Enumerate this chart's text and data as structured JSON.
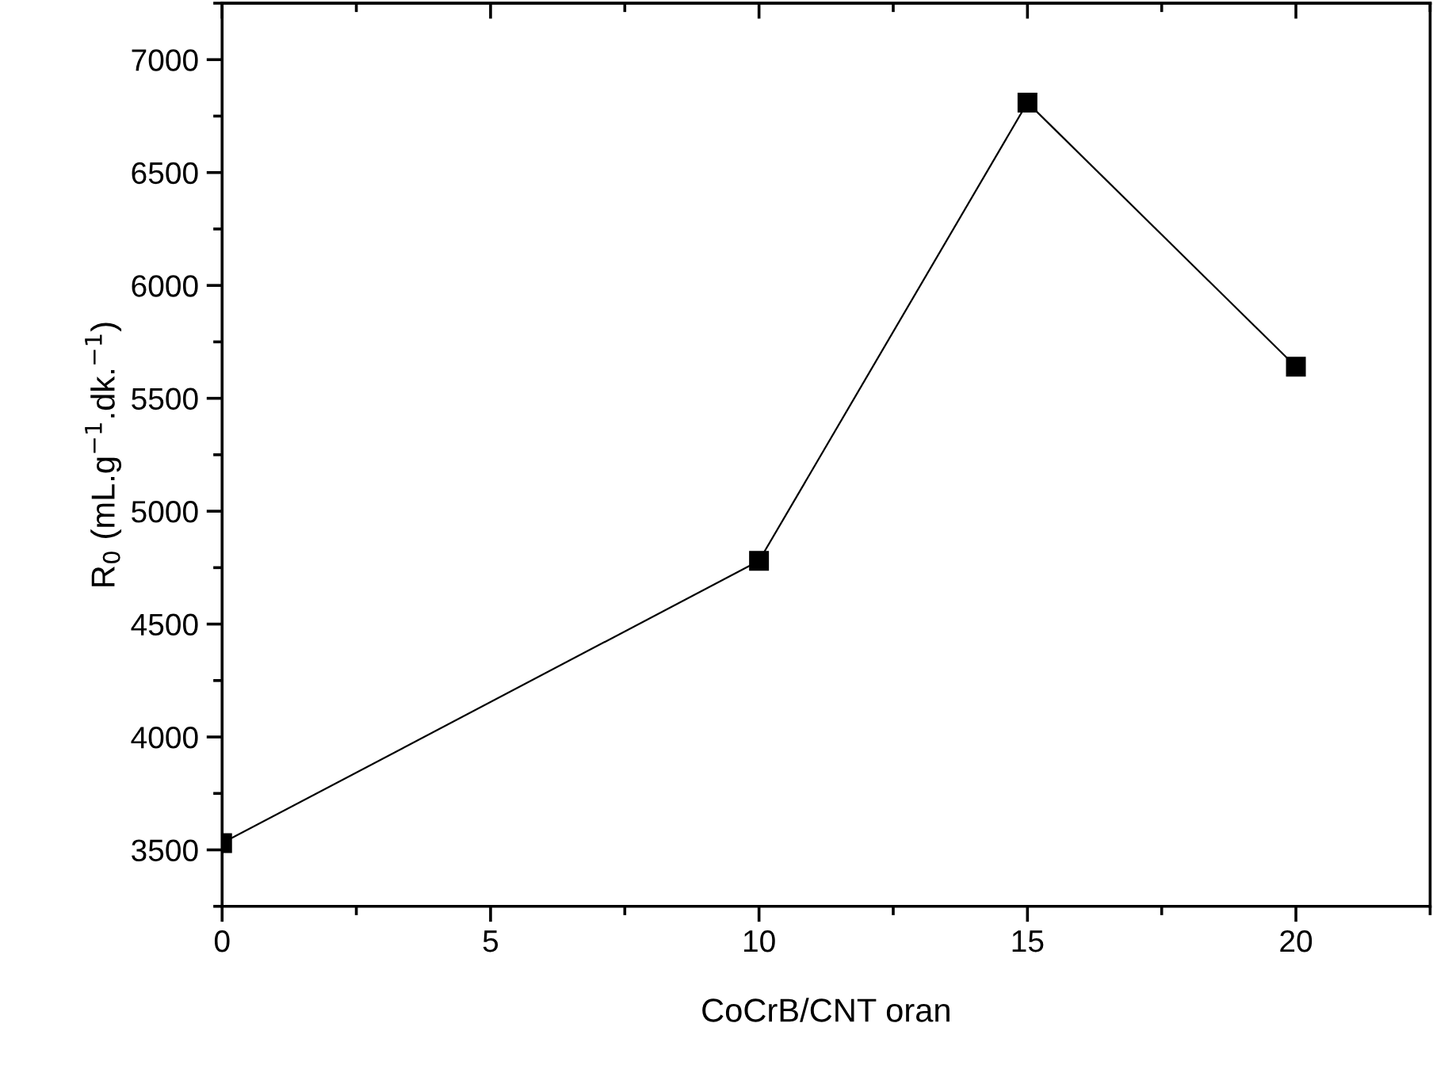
{
  "chart_data": {
    "type": "line",
    "xlabel": "CoCrB/CNT oran",
    "ylabel": "R$_{0}$ (mL.g$^{−1}$.dk.$^{−1}$)",
    "x": [
      0,
      10,
      15,
      20
    ],
    "series": [
      {
        "color": "#000000",
        "values": [
          3530,
          4780,
          6810,
          5640
        ]
      }
    ],
    "marker": "square",
    "line_style": "solid",
    "grid": false,
    "legend": false,
    "xlim": [
      0,
      22.5
    ],
    "xticks": [
      0,
      5,
      10,
      15,
      20
    ],
    "ylim": [
      3250,
      7250
    ],
    "yticks": [
      3500,
      4000,
      4500,
      5000,
      5500,
      6000,
      6500,
      7000
    ]
  }
}
